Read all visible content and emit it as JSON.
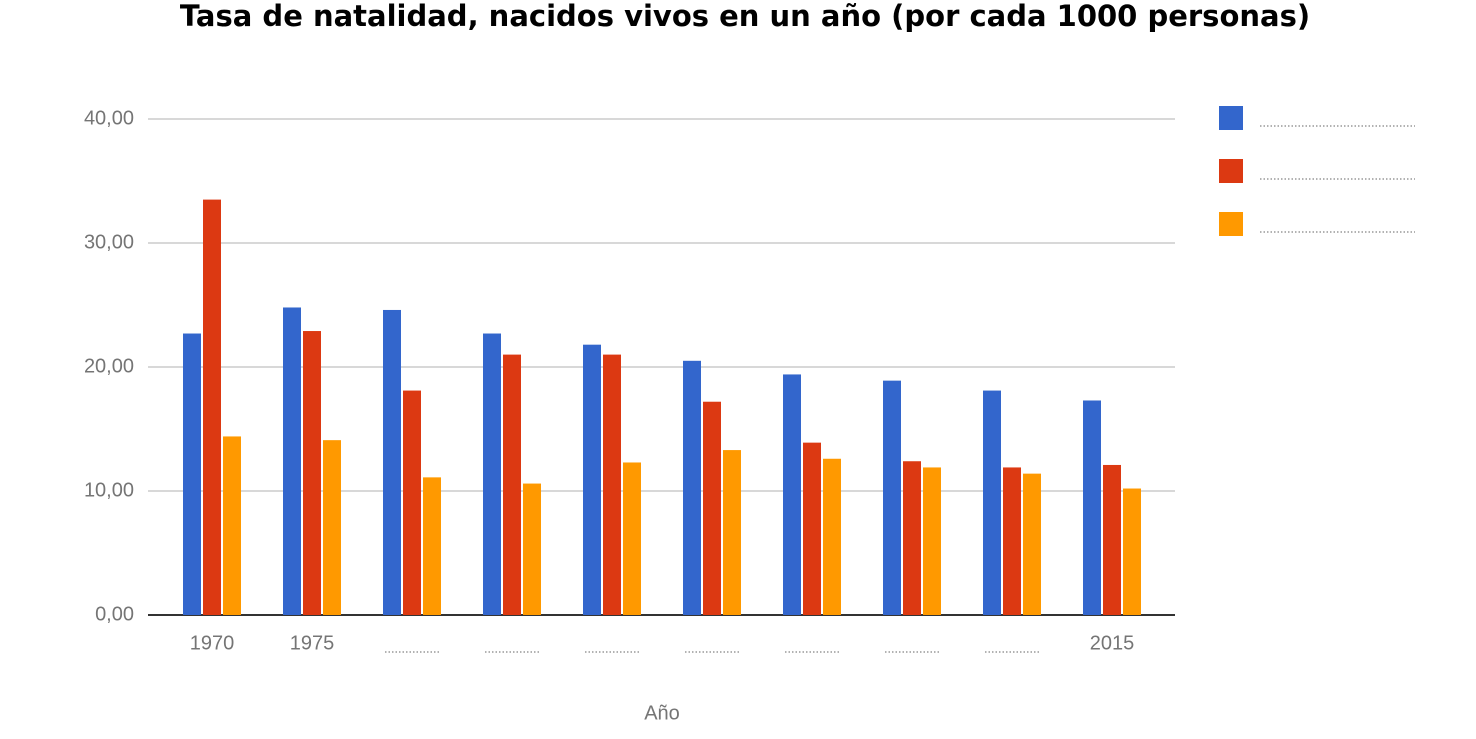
{
  "chart_data": {
    "type": "bar",
    "title": "Tasa de natalidad, nacidos vivos en un año (por cada 1000 personas)",
    "x_label": "Año",
    "categories": [
      "1970",
      "1975",
      null,
      null,
      null,
      null,
      null,
      null,
      null,
      "2015"
    ],
    "series": [
      {
        "name": null,
        "color": "#3366cc",
        "values": [
          22.7,
          24.8,
          24.6,
          22.7,
          21.8,
          20.5,
          19.4,
          18.9,
          18.1,
          17.3
        ]
      },
      {
        "name": null,
        "color": "#dc3912",
        "values": [
          33.5,
          22.9,
          18.1,
          21.0,
          21.0,
          17.2,
          13.9,
          12.4,
          11.9,
          12.1
        ]
      },
      {
        "name": null,
        "color": "#ff9900",
        "values": [
          14.4,
          14.1,
          11.1,
          10.6,
          12.3,
          13.3,
          12.6,
          11.9,
          11.4,
          10.2
        ]
      }
    ],
    "ylim": [
      0,
      40
    ],
    "yticks": [
      {
        "value": 0,
        "label": "0,00"
      },
      {
        "value": 10,
        "label": "10,00"
      },
      {
        "value": 20,
        "label": "20,00"
      },
      {
        "value": 30,
        "label": "30,00"
      },
      {
        "value": 40,
        "label": "40,00"
      }
    ],
    "grid": true,
    "legend": "right"
  }
}
